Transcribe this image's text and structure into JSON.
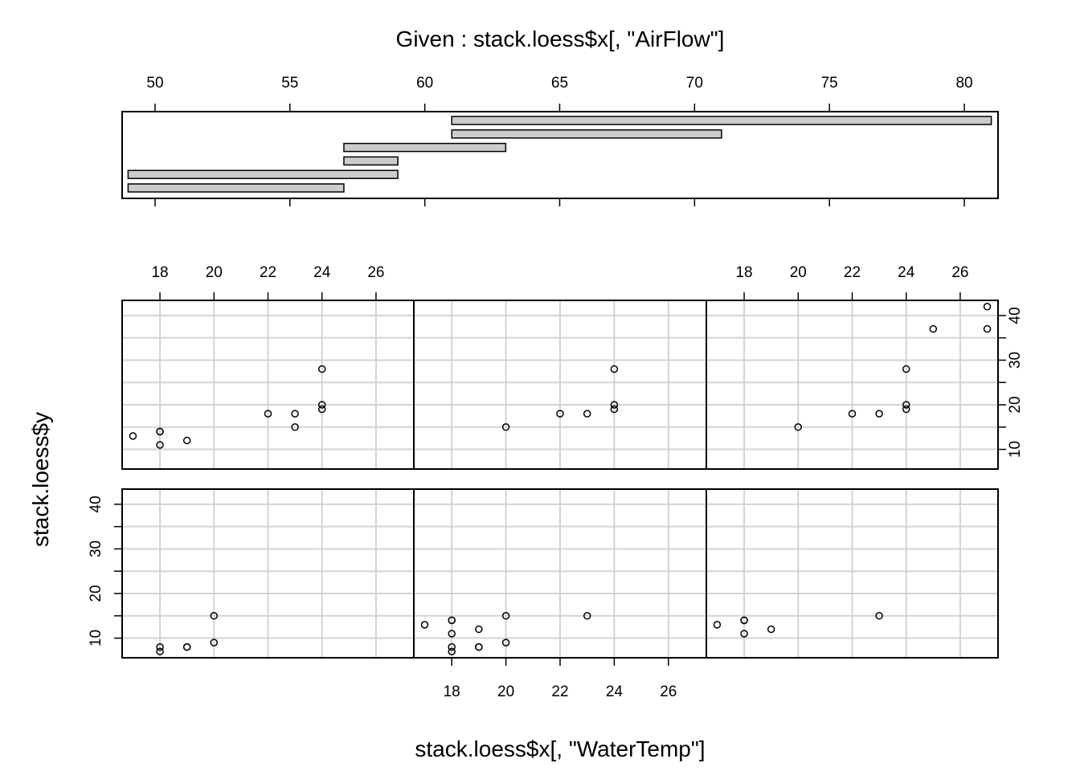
{
  "chart_data": {
    "type": "scatter",
    "layout": "coplot",
    "given": {
      "title": "Given : stack.loess$x[, \"AirFlow\"]",
      "ticks": [
        50,
        55,
        60,
        65,
        70,
        75,
        80
      ],
      "intervals": [
        [
          49,
          57
        ],
        [
          49,
          59
        ],
        [
          57,
          59
        ],
        [
          57,
          63
        ],
        [
          61,
          71
        ],
        [
          61,
          81
        ]
      ],
      "bar_fill": "#cccccc"
    },
    "xlabel": "stack.loess$x[, \"WaterTemp\"]",
    "ylabel": "stack.loess$y",
    "xticks": [
      18,
      20,
      22,
      24,
      26
    ],
    "yticks": [
      10,
      20,
      30,
      40
    ],
    "xlim": [
      16.6,
      27.4
    ],
    "ylim": [
      5.6,
      43.4
    ],
    "grid": true,
    "grid_color": "#d3d3d3",
    "panels": [
      {
        "interval": [
          49,
          57
        ],
        "points": [
          [
            18,
            8
          ],
          [
            18,
            7
          ],
          [
            19,
            8
          ],
          [
            19,
            8
          ],
          [
            20,
            9
          ],
          [
            20,
            15
          ]
        ]
      },
      {
        "interval": [
          49,
          59
        ],
        "points": [
          [
            18,
            8
          ],
          [
            18,
            7
          ],
          [
            19,
            8
          ],
          [
            19,
            8
          ],
          [
            20,
            9
          ],
          [
            20,
            15
          ],
          [
            23,
            15
          ],
          [
            18,
            14
          ],
          [
            18,
            14
          ],
          [
            17,
            13
          ],
          [
            18,
            11
          ],
          [
            19,
            12
          ]
        ]
      },
      {
        "interval": [
          57,
          59
        ],
        "points": [
          [
            23,
            15
          ],
          [
            18,
            14
          ],
          [
            18,
            14
          ],
          [
            17,
            13
          ],
          [
            18,
            11
          ],
          [
            19,
            12
          ]
        ]
      },
      {
        "interval": [
          57,
          63
        ],
        "points": [
          [
            24,
            28
          ],
          [
            22,
            18
          ],
          [
            23,
            18
          ],
          [
            24,
            19
          ],
          [
            24,
            20
          ],
          [
            23,
            15
          ],
          [
            18,
            14
          ],
          [
            18,
            14
          ],
          [
            17,
            13
          ],
          [
            18,
            11
          ],
          [
            19,
            12
          ]
        ]
      },
      {
        "interval": [
          61,
          71
        ],
        "points": [
          [
            24,
            28
          ],
          [
            22,
            18
          ],
          [
            23,
            18
          ],
          [
            24,
            19
          ],
          [
            24,
            20
          ],
          [
            20,
            15
          ]
        ]
      },
      {
        "interval": [
          61,
          81
        ],
        "points": [
          [
            27,
            42
          ],
          [
            27,
            37
          ],
          [
            25,
            37
          ],
          [
            24,
            28
          ],
          [
            22,
            18
          ],
          [
            23,
            18
          ],
          [
            24,
            19
          ],
          [
            24,
            20
          ],
          [
            20,
            15
          ]
        ]
      }
    ]
  }
}
